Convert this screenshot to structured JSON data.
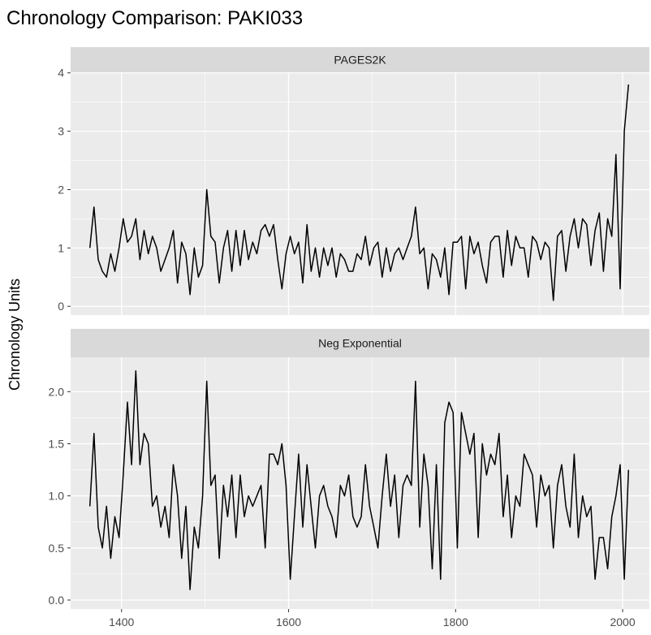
{
  "chart_data": {
    "type": "line",
    "title": "Chronology Comparison: PAKI033",
    "ylabel": "Chronology Units",
    "xlabel": "",
    "grid": true,
    "xlim": [
      1339,
      2032
    ],
    "x_ticks": [
      1400,
      1600,
      1800,
      2000
    ],
    "x_tick_labels": [
      "1400",
      "1600",
      "1800",
      "2000"
    ],
    "x": [
      1362,
      1367,
      1372,
      1377,
      1382,
      1387,
      1392,
      1397,
      1402,
      1407,
      1412,
      1417,
      1422,
      1427,
      1432,
      1437,
      1442,
      1447,
      1452,
      1457,
      1462,
      1467,
      1472,
      1477,
      1482,
      1487,
      1492,
      1497,
      1502,
      1507,
      1512,
      1517,
      1522,
      1527,
      1532,
      1537,
      1542,
      1547,
      1552,
      1557,
      1562,
      1567,
      1572,
      1577,
      1582,
      1587,
      1592,
      1597,
      1602,
      1607,
      1612,
      1617,
      1622,
      1627,
      1632,
      1637,
      1642,
      1647,
      1652,
      1657,
      1662,
      1667,
      1672,
      1677,
      1682,
      1687,
      1692,
      1697,
      1702,
      1707,
      1712,
      1717,
      1722,
      1727,
      1732,
      1737,
      1742,
      1747,
      1752,
      1757,
      1762,
      1767,
      1772,
      1777,
      1782,
      1787,
      1792,
      1797,
      1802,
      1807,
      1812,
      1817,
      1822,
      1827,
      1832,
      1837,
      1842,
      1847,
      1852,
      1857,
      1862,
      1867,
      1872,
      1877,
      1882,
      1887,
      1892,
      1897,
      1902,
      1907,
      1912,
      1917,
      1922,
      1927,
      1932,
      1937,
      1942,
      1947,
      1952,
      1957,
      1962,
      1967,
      1972,
      1977,
      1982,
      1987,
      1992,
      1997,
      2002,
      2007
    ],
    "panels": [
      {
        "name": "PAGES2K",
        "ylim": [
          -0.15,
          4.01
        ],
        "y_ticks": [
          0,
          1,
          2,
          3,
          4
        ],
        "y_tick_labels": [
          "0",
          "1",
          "2",
          "3",
          "4"
        ],
        "values": [
          1.0,
          1.7,
          0.8,
          0.6,
          0.5,
          0.9,
          0.6,
          1.0,
          1.5,
          1.1,
          1.2,
          1.5,
          0.8,
          1.3,
          0.9,
          1.2,
          1.0,
          0.6,
          0.8,
          1.0,
          1.3,
          0.4,
          1.1,
          0.9,
          0.2,
          1.0,
          0.5,
          0.7,
          2.0,
          1.2,
          1.1,
          0.4,
          1.0,
          1.3,
          0.6,
          1.3,
          0.7,
          1.3,
          0.8,
          1.1,
          0.9,
          1.3,
          1.4,
          1.2,
          1.4,
          0.8,
          0.3,
          0.9,
          1.2,
          0.9,
          1.1,
          0.4,
          1.4,
          0.6,
          1.0,
          0.5,
          1.0,
          0.7,
          1.0,
          0.5,
          0.9,
          0.8,
          0.6,
          0.6,
          0.9,
          0.8,
          1.2,
          0.7,
          1.0,
          1.1,
          0.5,
          1.0,
          0.6,
          0.9,
          1.0,
          0.8,
          1.0,
          1.2,
          1.7,
          0.9,
          1.0,
          0.3,
          0.9,
          0.8,
          0.5,
          1.0,
          0.2,
          1.1,
          1.1,
          1.2,
          0.3,
          1.2,
          0.9,
          1.1,
          0.7,
          0.4,
          1.1,
          1.2,
          1.2,
          0.5,
          1.3,
          0.7,
          1.2,
          1.0,
          1.0,
          0.5,
          1.2,
          1.1,
          0.8,
          1.1,
          1.0,
          0.1,
          1.2,
          1.3,
          0.6,
          1.2,
          1.5,
          1.0,
          1.5,
          1.4,
          0.7,
          1.3,
          1.6,
          0.6,
          1.5,
          1.2,
          2.6,
          0.3,
          3.0,
          3.8
        ]
      },
      {
        "name": "Neg Exponential",
        "ylim": [
          -0.086,
          2.33
        ],
        "y_ticks": [
          0,
          0.5,
          1,
          1.5,
          2
        ],
        "y_tick_labels": [
          "0.0",
          "0.5",
          "1.0",
          "1.5",
          "2.0"
        ],
        "values": [
          0.9,
          1.6,
          0.7,
          0.5,
          0.9,
          0.4,
          0.8,
          0.6,
          1.2,
          1.9,
          1.3,
          2.2,
          1.3,
          1.6,
          1.5,
          0.9,
          1.0,
          0.7,
          0.9,
          0.6,
          1.3,
          1.0,
          0.4,
          0.9,
          0.1,
          0.7,
          0.5,
          1.0,
          2.1,
          1.1,
          1.2,
          0.4,
          1.1,
          0.8,
          1.2,
          0.6,
          1.2,
          0.8,
          1.0,
          0.9,
          1.0,
          1.1,
          0.5,
          1.4,
          1.4,
          1.3,
          1.5,
          1.1,
          0.2,
          0.8,
          1.4,
          0.7,
          1.3,
          0.9,
          0.5,
          1.0,
          1.1,
          0.9,
          0.8,
          0.6,
          1.1,
          1.0,
          1.2,
          0.8,
          0.7,
          0.8,
          1.3,
          0.9,
          0.7,
          0.5,
          1.0,
          1.4,
          0.9,
          1.2,
          0.6,
          1.1,
          1.2,
          1.1,
          2.1,
          0.7,
          1.4,
          1.1,
          0.3,
          1.3,
          0.2,
          1.7,
          1.9,
          1.8,
          0.5,
          1.8,
          1.6,
          1.4,
          1.6,
          0.6,
          1.5,
          1.2,
          1.4,
          1.3,
          1.6,
          0.8,
          1.2,
          0.6,
          1.0,
          0.9,
          1.4,
          1.3,
          1.2,
          0.7,
          1.2,
          1.0,
          1.1,
          0.5,
          1.1,
          1.3,
          0.9,
          0.7,
          1.4,
          0.6,
          1.0,
          0.8,
          0.9,
          0.2,
          0.6,
          0.6,
          0.3,
          0.8,
          1.0,
          1.3,
          0.2,
          1.25
        ]
      }
    ],
    "colors": {
      "line": "#000000",
      "panel_bg": "#ebebeb",
      "strip_bg": "#d9d9d9",
      "grid": "#ffffff"
    }
  }
}
